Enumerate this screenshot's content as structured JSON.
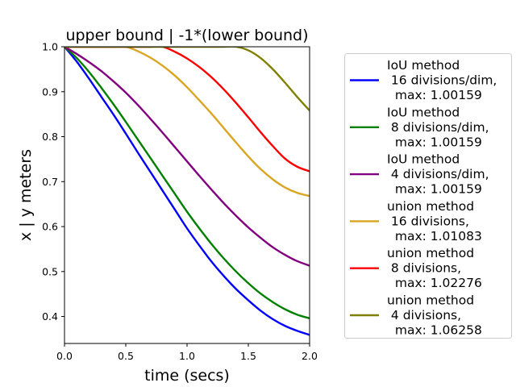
{
  "chart_data": {
    "type": "line",
    "title": "upper bound | -1*(lower bound)",
    "xlabel": "time (secs)",
    "ylabel": "x | y meters",
    "xlim": [
      0.0,
      2.0
    ],
    "ylim": [
      0.34,
      1.0
    ],
    "xticks": [
      "0.0",
      "0.5",
      "1.0",
      "1.5",
      "2.0"
    ],
    "yticks": [
      "0.4",
      "0.5",
      "0.6",
      "0.7",
      "0.8",
      "0.9",
      "1.0"
    ],
    "grid": false,
    "legend_position": "right, outside plot",
    "x": [
      0.0,
      0.1,
      0.2,
      0.3,
      0.4,
      0.5,
      0.6,
      0.7,
      0.8,
      0.9,
      1.0,
      1.1,
      1.2,
      1.3,
      1.4,
      1.5,
      1.6,
      1.7,
      1.8,
      1.9,
      2.0
    ],
    "series": [
      {
        "name": "IoU method\n 16 divisions/dim,\n  max: 1.00159",
        "color": "#0000ff",
        "values": [
          1.0,
          0.967,
          0.929,
          0.889,
          0.849,
          0.807,
          0.764,
          0.722,
          0.68,
          0.638,
          0.596,
          0.558,
          0.522,
          0.49,
          0.461,
          0.436,
          0.413,
          0.394,
          0.379,
          0.368,
          0.359
        ]
      },
      {
        "name": "IoU method\n 8 divisions/dim,\n  max: 1.00159",
        "color": "#008000",
        "values": [
          1.0,
          0.975,
          0.944,
          0.909,
          0.872,
          0.833,
          0.793,
          0.753,
          0.713,
          0.673,
          0.633,
          0.596,
          0.561,
          0.529,
          0.5,
          0.474,
          0.451,
          0.432,
          0.416,
          0.404,
          0.396
        ]
      },
      {
        "name": "IoU method\n 4 divisions/dim,\n  max: 1.00159",
        "color": "#800080",
        "values": [
          1.0,
          0.984,
          0.966,
          0.946,
          0.923,
          0.898,
          0.87,
          0.84,
          0.809,
          0.777,
          0.745,
          0.713,
          0.682,
          0.652,
          0.624,
          0.598,
          0.575,
          0.554,
          0.537,
          0.523,
          0.513
        ]
      },
      {
        "name": "union method\n 16 divisions,\n  max: 1.01083",
        "color": "#daa520",
        "values": [
          1.0,
          1.0,
          1.0,
          1.0,
          1.0,
          1.0,
          0.99,
          0.976,
          0.958,
          0.936,
          0.91,
          0.881,
          0.851,
          0.819,
          0.787,
          0.756,
          0.728,
          0.705,
          0.687,
          0.675,
          0.668
        ]
      },
      {
        "name": "union method\n 8 divisions,\n  max: 1.02276",
        "color": "#ff0000",
        "values": [
          1.0,
          1.0,
          1.0,
          1.0,
          1.0,
          1.0,
          1.0,
          1.0,
          1.0,
          0.989,
          0.974,
          0.955,
          0.932,
          0.905,
          0.875,
          0.843,
          0.81,
          0.779,
          0.751,
          0.733,
          0.723
        ]
      },
      {
        "name": "union method\n 4 divisions,\n  max: 1.06258",
        "color": "#808000",
        "values": [
          1.0,
          1.0,
          1.0,
          1.0,
          1.0,
          1.0,
          1.0,
          1.0,
          1.0,
          1.0,
          1.0,
          1.0,
          1.0,
          1.0,
          1.0,
          0.992,
          0.975,
          0.95,
          0.92,
          0.888,
          0.858
        ]
      }
    ]
  }
}
